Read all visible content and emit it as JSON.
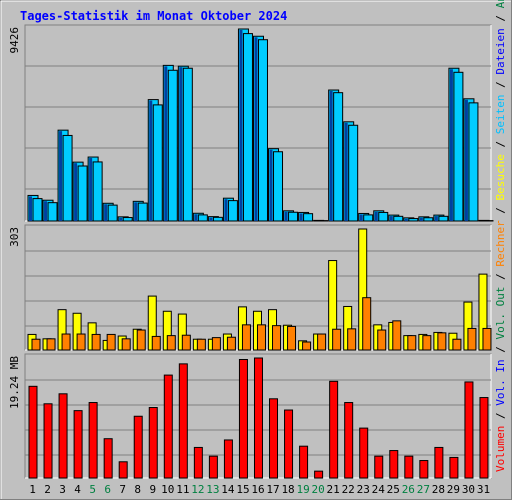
{
  "title": "Tages-Statistik im Monat Oktober 2024",
  "chart_data": {
    "type": "bar",
    "x": [
      1,
      2,
      3,
      4,
      5,
      6,
      7,
      8,
      9,
      10,
      11,
      12,
      13,
      14,
      15,
      16,
      17,
      18,
      19,
      20,
      21,
      22,
      23,
      24,
      25,
      26,
      27,
      28,
      29,
      30,
      31
    ],
    "weekend_days": [
      5,
      6,
      12,
      13,
      19,
      20,
      26,
      27
    ],
    "panels": [
      {
        "ymax_label": "9426",
        "ymax": 9426,
        "series": [
          {
            "name": "Anfragen",
            "color": "#00ccff",
            "values": [
              1255,
              1020,
              4460,
              2890,
              3140,
              870,
              205,
              965,
              5960,
              7640,
              7600,
              380,
              215,
              1120,
              9426,
              9070,
              3550,
              500,
              420,
              30,
              6430,
              4870,
              370,
              500,
              290,
              155,
              205,
              290,
              7500,
              6000,
              30
            ]
          },
          {
            "name": "Dateien",
            "color": "#0000ff",
            "values": [
              1255,
              1020,
              4460,
              2890,
              3140,
              870,
              205,
              965,
              5960,
              7640,
              7600,
              380,
              215,
              1120,
              9426,
              9070,
              3550,
              500,
              420,
              30,
              6430,
              4870,
              370,
              500,
              290,
              155,
              205,
              290,
              7500,
              6000,
              30
            ]
          },
          {
            "name": "Seiten",
            "color": "#00d0ff",
            "values": [
              1100,
              900,
              4200,
              2700,
              2900,
              780,
              170,
              880,
              5700,
              7400,
              7500,
              300,
              180,
              1000,
              9200,
              8900,
              3400,
              430,
              360,
              20,
              6300,
              4700,
              300,
              420,
              230,
              120,
              160,
              230,
              7300,
              5800,
              20
            ]
          }
        ]
      },
      {
        "ymax_label": "303",
        "ymax": 303,
        "series": [
          {
            "name": "Besuche",
            "color": "#ffff00",
            "values": [
              39,
              28,
              101,
              92,
              68,
              24,
              35,
              52,
              135,
              97,
              90,
              27,
              27,
              40,
              108,
              97,
              101,
              62,
              23,
              40,
              224,
              109,
              303,
              63,
              69,
              36,
              39,
              44,
              42,
              120,
              190
            ]
          },
          {
            "name": "Rechner",
            "color": "#ff8000",
            "values": [
              27,
              28,
              40,
              40,
              39,
              39,
              28,
              50,
              34,
              36,
              37,
              27,
              31,
              32,
              63,
              63,
              61,
              59,
              20,
              40,
              52,
              53,
              131,
              50,
              73,
              36,
              36,
              43,
              27,
              54,
              54
            ]
          }
        ]
      },
      {
        "ymax_label": "19.24 MB",
        "ymax": 19.24,
        "series": [
          {
            "name": "Volumen",
            "color": "#ff0000",
            "values": [
              14.7,
              11.9,
              13.5,
              10.8,
              12.1,
              6.3,
              2.6,
              9.9,
              11.3,
              16.5,
              18.3,
              4.9,
              3.5,
              6.1,
              19.0,
              19.24,
              12.7,
              10.9,
              5.1,
              1.1,
              15.5,
              12.1,
              8.0,
              3.5,
              4.4,
              3.5,
              2.8,
              4.9,
              3.3,
              15.4,
              12.9
            ]
          }
        ]
      }
    ],
    "right_legend": [
      {
        "text": "Anfragen",
        "color": "#008040"
      },
      {
        "text": "Dateien",
        "color": "#0000ff"
      },
      {
        "text": "Seiten",
        "color": "#00c0ff"
      },
      {
        "text": "Besuche",
        "color": "#ffff00"
      },
      {
        "text": "Rechner",
        "color": "#ff8000"
      },
      {
        "text": "Vol. Out",
        "color": "#008040"
      },
      {
        "text": "Vol. In",
        "color": "#0000ff"
      },
      {
        "text": "Volumen",
        "color": "#ff0000"
      }
    ]
  }
}
